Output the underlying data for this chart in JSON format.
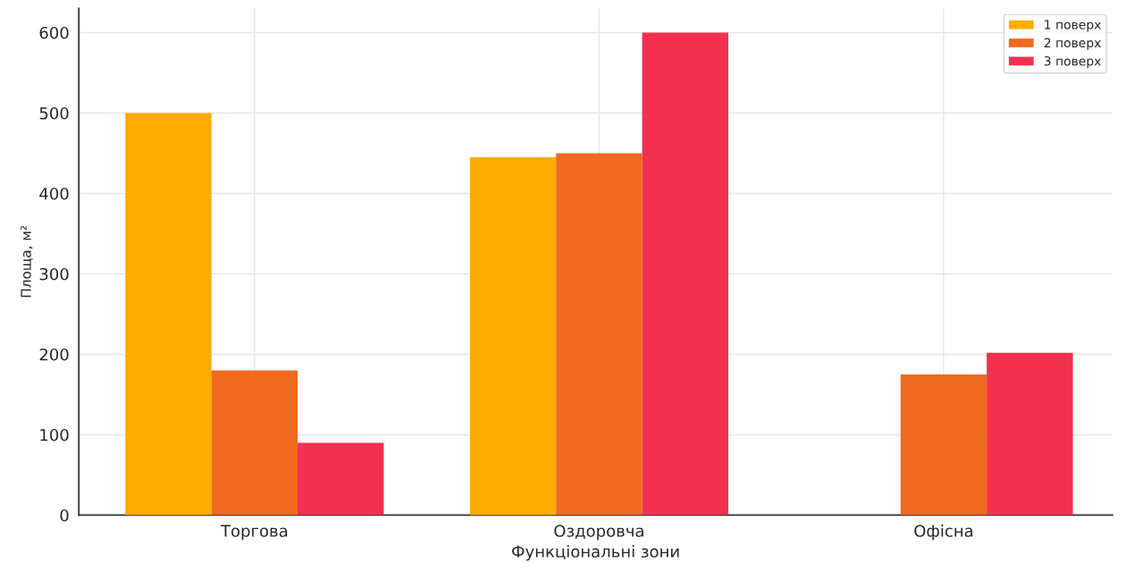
{
  "chart_data": {
    "type": "bar",
    "xlabel": "Функціональні зони",
    "ylabel": "Площа, м²",
    "categories": [
      "Торгова",
      "Оздоровча",
      "Офісна"
    ],
    "series": [
      {
        "name": "1 поверх",
        "color": "#fdab00",
        "values": [
          500,
          445,
          null
        ]
      },
      {
        "name": "2 поверх",
        "color": "#f06a20",
        "values": [
          180,
          450,
          175
        ]
      },
      {
        "name": "3 поверх",
        "color": "#f3304f",
        "values": [
          90,
          600,
          202
        ]
      }
    ],
    "ylim": [
      0,
      630
    ],
    "yticks": [
      0,
      100,
      200,
      300,
      400,
      500,
      600
    ],
    "grid": true,
    "legend": "top right"
  }
}
